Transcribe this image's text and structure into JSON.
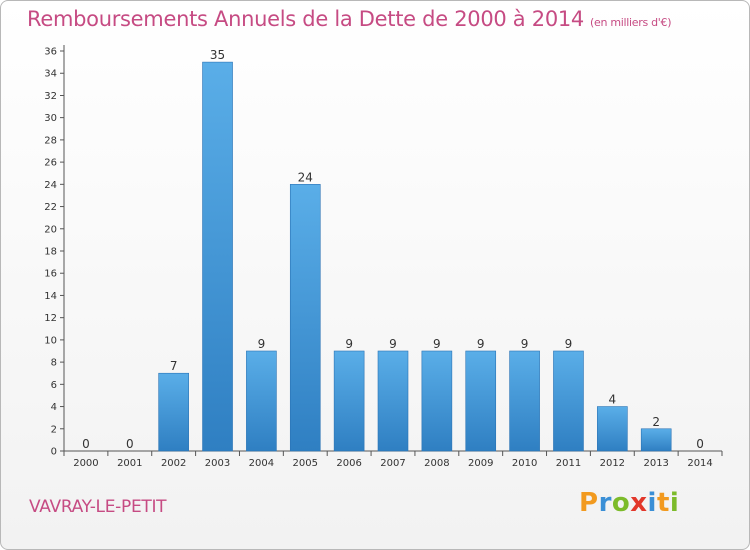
{
  "header": {
    "title": "Remboursements Annuels de la Dette de 2000 à 2014",
    "subtitle": "(en milliers d'€)"
  },
  "footer": {
    "town": "VAVRAY-LE-PETIT",
    "brand": "Proxiti"
  },
  "colors": {
    "title": "#c64b83",
    "bar_light": "#5aaee8",
    "bar_dark": "#2f7fc2",
    "brand_letters": [
      "#f29a1f",
      "#3a8fd6",
      "#7cbb2a",
      "#e2372a",
      "#3a8fd6",
      "#f29a1f",
      "#7cbb2a"
    ]
  },
  "chart_data": {
    "type": "bar",
    "title": "Remboursements Annuels de la Dette de 2000 à 2014",
    "categories": [
      "2000",
      "2001",
      "2002",
      "2003",
      "2004",
      "2005",
      "2006",
      "2007",
      "2008",
      "2009",
      "2010",
      "2011",
      "2012",
      "2013",
      "2014"
    ],
    "values": [
      0,
      0,
      7,
      35,
      9,
      24,
      9,
      9,
      9,
      9,
      9,
      9,
      4,
      2,
      0
    ],
    "ylim": [
      0,
      36
    ],
    "yticks": [
      0,
      2,
      4,
      6,
      8,
      10,
      12,
      14,
      16,
      18,
      20,
      22,
      24,
      26,
      28,
      30,
      32,
      34,
      36
    ],
    "grid": false,
    "legend": "none"
  }
}
